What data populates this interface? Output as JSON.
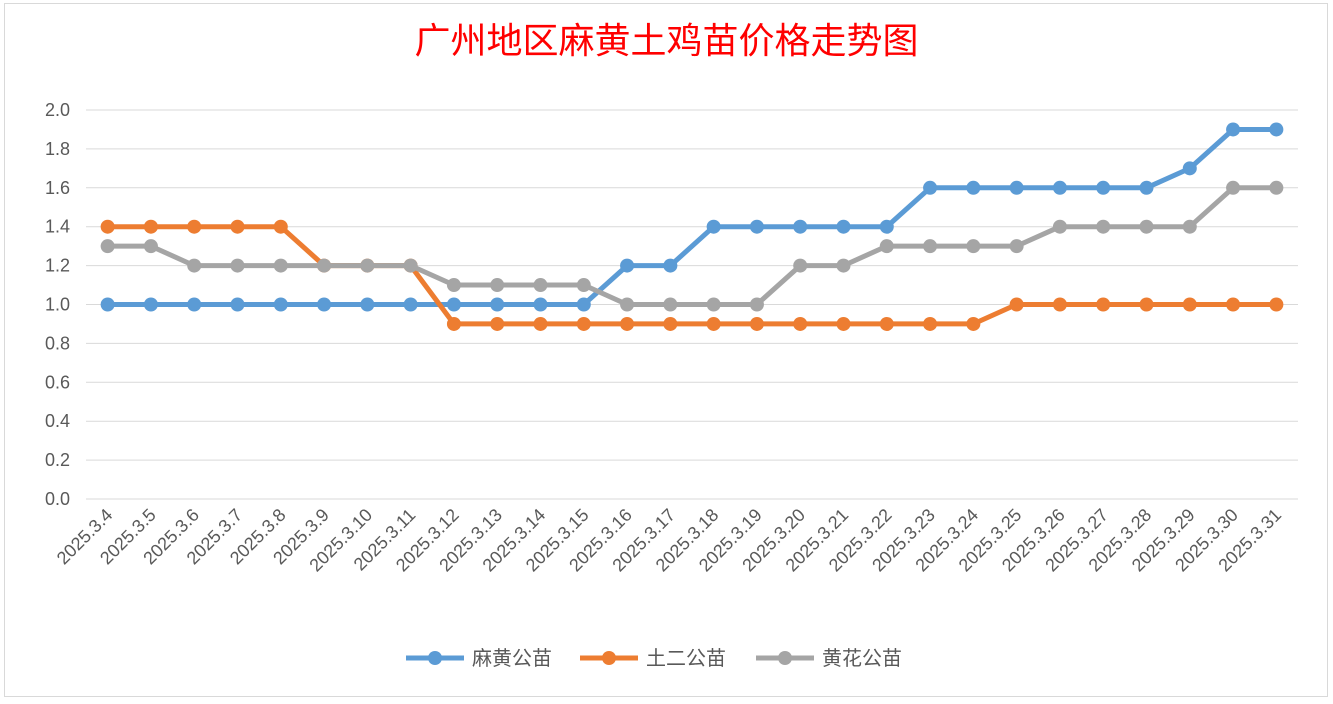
{
  "chart_data": {
    "type": "line",
    "title": "广州地区麻黄土鸡苗价格走势图",
    "xlabel": "",
    "ylabel": "",
    "ylim": [
      0,
      2.0
    ],
    "y_ticks": [
      "0.0",
      "0.2",
      "0.4",
      "0.6",
      "0.8",
      "1.0",
      "1.2",
      "1.4",
      "1.6",
      "1.8",
      "2.0"
    ],
    "grid": true,
    "legend_position": "bottom",
    "categories": [
      "2025.3.4",
      "2025.3.5",
      "2025.3.6",
      "2025.3.7",
      "2025.3.8",
      "2025.3.9",
      "2025.3.10",
      "2025.3.11",
      "2025.3.12",
      "2025.3.13",
      "2025.3.14",
      "2025.3.15",
      "2025.3.16",
      "2025.3.17",
      "2025.3.18",
      "2025.3.19",
      "2025.3.20",
      "2025.3.21",
      "2025.3.22",
      "2025.3.23",
      "2025.3.24",
      "2025.3.25",
      "2025.3.26",
      "2025.3.27",
      "2025.3.28",
      "2025.3.29",
      "2025.3.30",
      "2025.3.31"
    ],
    "series": [
      {
        "name": "麻黄公苗",
        "color": "#5b9bd5",
        "values": [
          1.0,
          1.0,
          1.0,
          1.0,
          1.0,
          1.0,
          1.0,
          1.0,
          1.0,
          1.0,
          1.0,
          1.0,
          1.2,
          1.2,
          1.4,
          1.4,
          1.4,
          1.4,
          1.4,
          1.6,
          1.6,
          1.6,
          1.6,
          1.6,
          1.6,
          1.7,
          1.9,
          1.9
        ]
      },
      {
        "name": "土二公苗",
        "color": "#ed7d31",
        "values": [
          1.4,
          1.4,
          1.4,
          1.4,
          1.4,
          1.2,
          1.2,
          1.2,
          0.9,
          0.9,
          0.9,
          0.9,
          0.9,
          0.9,
          0.9,
          0.9,
          0.9,
          0.9,
          0.9,
          0.9,
          0.9,
          1.0,
          1.0,
          1.0,
          1.0,
          1.0,
          1.0,
          1.0
        ]
      },
      {
        "name": "黄花公苗",
        "color": "#a5a5a5",
        "values": [
          1.3,
          1.3,
          1.2,
          1.2,
          1.2,
          1.2,
          1.2,
          1.2,
          1.1,
          1.1,
          1.1,
          1.1,
          1.0,
          1.0,
          1.0,
          1.0,
          1.2,
          1.2,
          1.3,
          1.3,
          1.3,
          1.3,
          1.4,
          1.4,
          1.4,
          1.4,
          1.6,
          1.6
        ]
      }
    ]
  }
}
